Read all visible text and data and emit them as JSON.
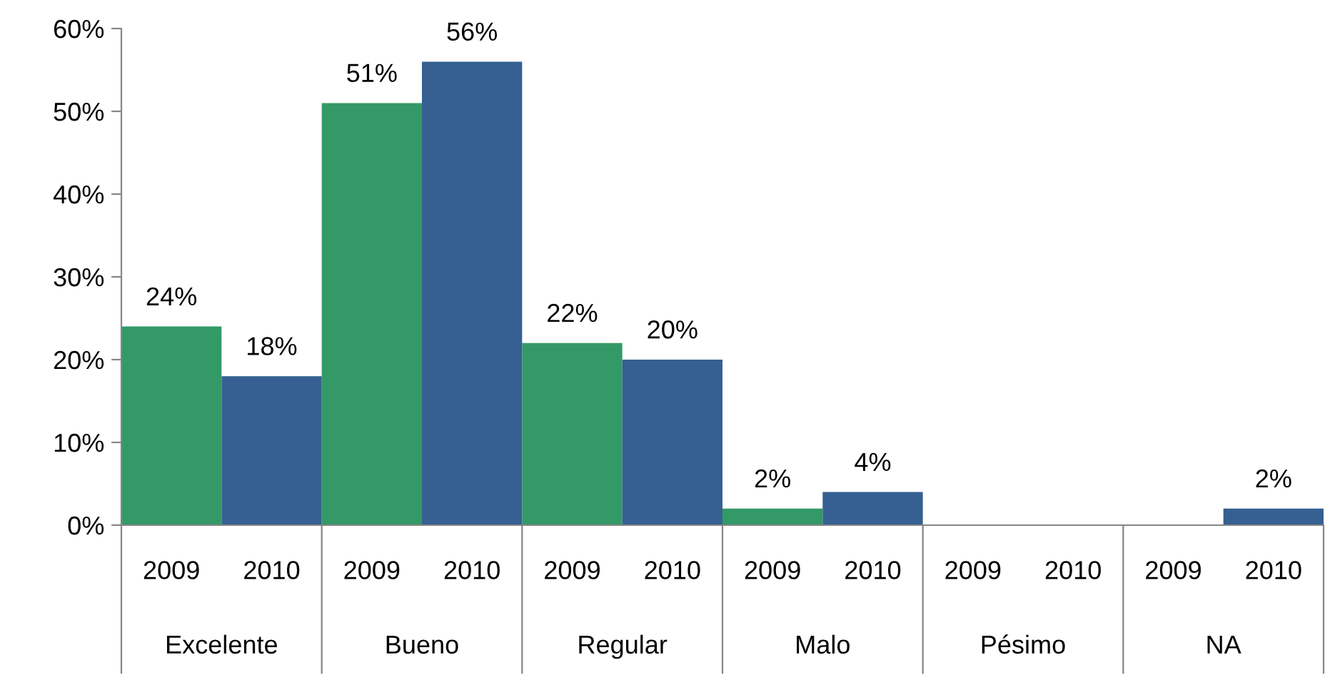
{
  "chart_data": {
    "type": "bar",
    "categories": [
      "Excelente",
      "Bueno",
      "Regular",
      "Malo",
      "Pésimo",
      "NA"
    ],
    "series": [
      {
        "name": "2009",
        "color": "#339966",
        "values": [
          24,
          51,
          22,
          2,
          null,
          null
        ],
        "value_labels": [
          "24%",
          "51%",
          "22%",
          "2%",
          null,
          null
        ]
      },
      {
        "name": "2010",
        "color": "#366092",
        "values": [
          18,
          56,
          20,
          4,
          null,
          2
        ],
        "value_labels": [
          "18%",
          "56%",
          "20%",
          "4%",
          null,
          "2%"
        ]
      }
    ],
    "ylim": [
      0,
      60
    ],
    "yticks": [
      {
        "value": 0,
        "label": "0%"
      },
      {
        "value": 10,
        "label": "10%"
      },
      {
        "value": 20,
        "label": "20%"
      },
      {
        "value": 30,
        "label": "30%"
      },
      {
        "value": 40,
        "label": "40%"
      },
      {
        "value": 50,
        "label": "50%"
      },
      {
        "value": 60,
        "label": "60%"
      }
    ],
    "grid": false,
    "legend": false
  }
}
